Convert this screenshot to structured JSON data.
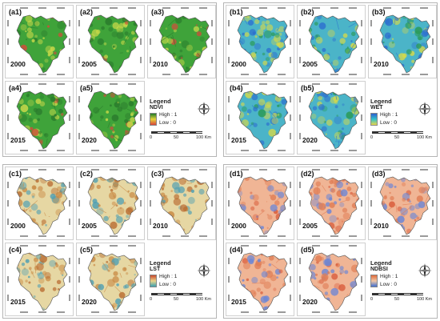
{
  "panels": [
    {
      "id": "a",
      "legend": {
        "title": "Legend",
        "name": "NDVI",
        "high": "High : 1",
        "low": "Low : 0",
        "colors": [
          "#1d7a2a",
          "#e6d43a",
          "#d8433a"
        ]
      },
      "scale": {
        "zero": "0",
        "mid": "50",
        "max": "100 Km"
      },
      "theme": {
        "base": "#3fa33a",
        "alt": "#2a7a2c",
        "hi": "#c9d94a",
        "spot": "#d9473b"
      },
      "maps": [
        {
          "label": "(a1)",
          "year": "2000"
        },
        {
          "label": "(a2)",
          "year": "2005"
        },
        {
          "label": "(a3)",
          "year": "2010"
        },
        {
          "label": "(a4)",
          "year": "2015"
        },
        {
          "label": "(a5)",
          "year": "2020"
        }
      ]
    },
    {
      "id": "b",
      "legend": {
        "title": "Legend",
        "name": "WET",
        "high": "High : 1",
        "low": "Low : 0",
        "colors": [
          "#2b5fd1",
          "#33c2c8",
          "#e9d64a"
        ]
      },
      "scale": {
        "zero": "0",
        "mid": "50",
        "max": "100 Km"
      },
      "theme": {
        "base": "#4bb4c8",
        "alt": "#2d6fcf",
        "hi": "#d6d94a",
        "spot": "#2a9a55"
      },
      "maps": [
        {
          "label": "(b1)",
          "year": "2000"
        },
        {
          "label": "(b2)",
          "year": "2005"
        },
        {
          "label": "(b3)",
          "year": "2010"
        },
        {
          "label": "(b4)",
          "year": "2015"
        },
        {
          "label": "(b5)",
          "year": "2020"
        }
      ]
    },
    {
      "id": "c",
      "legend": {
        "title": "Legend",
        "name": "LST",
        "high": "High : 1",
        "low": "Low : 0",
        "colors": [
          "#c9482c",
          "#ead58a",
          "#3b9fb0"
        ]
      },
      "scale": {
        "zero": "0",
        "mid": "50",
        "max": "100 Km"
      },
      "theme": {
        "base": "#e6d7a3",
        "alt": "#c98a45",
        "hi": "#4f9fb3",
        "spot": "#b86a30"
      },
      "maps": [
        {
          "label": "(c1)",
          "year": "2000"
        },
        {
          "label": "(c2)",
          "year": "2005"
        },
        {
          "label": "(c3)",
          "year": "2010"
        },
        {
          "label": "(c4)",
          "year": "2015"
        },
        {
          "label": "(c5)",
          "year": "2020"
        }
      ]
    },
    {
      "id": "d",
      "legend": {
        "title": "Legend",
        "name": "NDBSI",
        "high": "High : 1",
        "low": "Low : 0",
        "colors": [
          "#e06a3a",
          "#f0c7a6",
          "#3f6fd1"
        ]
      },
      "scale": {
        "zero": "0",
        "mid": "50",
        "max": "100 Km"
      },
      "theme": {
        "base": "#f0b595",
        "alt": "#e07d55",
        "hi": "#6b86d6",
        "spot": "#d85a3a"
      },
      "maps": [
        {
          "label": "(d1)",
          "year": "2000"
        },
        {
          "label": "(d2)",
          "year": "2005"
        },
        {
          "label": "(d3)",
          "year": "2010"
        },
        {
          "label": "(d4)",
          "year": "2015"
        },
        {
          "label": "(d5)",
          "year": "2020"
        }
      ]
    }
  ]
}
